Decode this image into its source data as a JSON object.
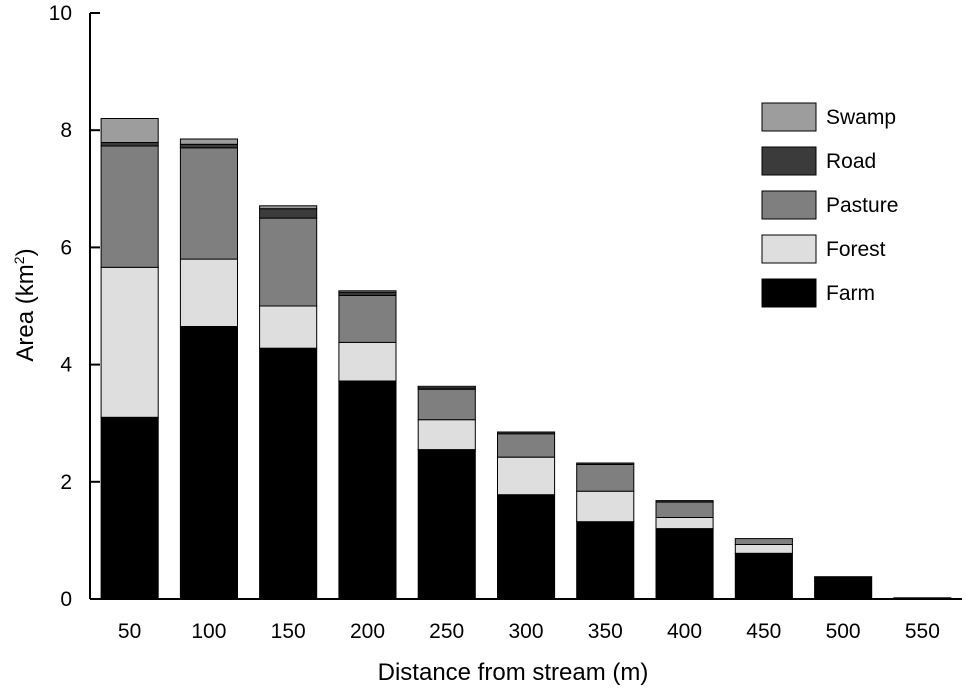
{
  "chart_data": {
    "type": "bar",
    "stacked": true,
    "xlabel": "Distance from stream (m)",
    "ylabel": {
      "main": "Area (km",
      "sup": "2",
      "end": ")"
    },
    "ylim": [
      0,
      10
    ],
    "yticks": [
      "0",
      "2",
      "4",
      "6",
      "8",
      "10"
    ],
    "categories": [
      "50",
      "100",
      "150",
      "200",
      "250",
      "300",
      "350",
      "400",
      "450",
      "500",
      "550"
    ],
    "series": [
      {
        "name": "Farm",
        "color": "#000000",
        "values": [
          3.1,
          4.65,
          4.28,
          3.72,
          2.55,
          1.78,
          1.32,
          1.2,
          0.78,
          0.38,
          0.02
        ]
      },
      {
        "name": "Forest",
        "color": "#dedede",
        "values": [
          2.56,
          1.15,
          0.72,
          0.66,
          0.51,
          0.64,
          0.52,
          0.19,
          0.15,
          0.0,
          0.0
        ]
      },
      {
        "name": "Pasture",
        "color": "#7f7f7f",
        "values": [
          2.07,
          1.9,
          1.5,
          0.8,
          0.52,
          0.4,
          0.46,
          0.27,
          0.1,
          0.0,
          0.0
        ]
      },
      {
        "name": "Road",
        "color": "#3b3b3b",
        "values": [
          0.06,
          0.06,
          0.16,
          0.06,
          0.04,
          0.03,
          0.02,
          0.02,
          0.0,
          0.0,
          0.0
        ]
      },
      {
        "name": "Swamp",
        "color": "#9d9d9d",
        "values": [
          0.41,
          0.09,
          0.05,
          0.02,
          0.01,
          0.0,
          0.0,
          0.0,
          0.0,
          0.0,
          0.0
        ]
      }
    ],
    "legend": {
      "position": "top-right",
      "order": [
        "Swamp",
        "Road",
        "Pasture",
        "Forest",
        "Farm"
      ]
    },
    "grid": false
  }
}
